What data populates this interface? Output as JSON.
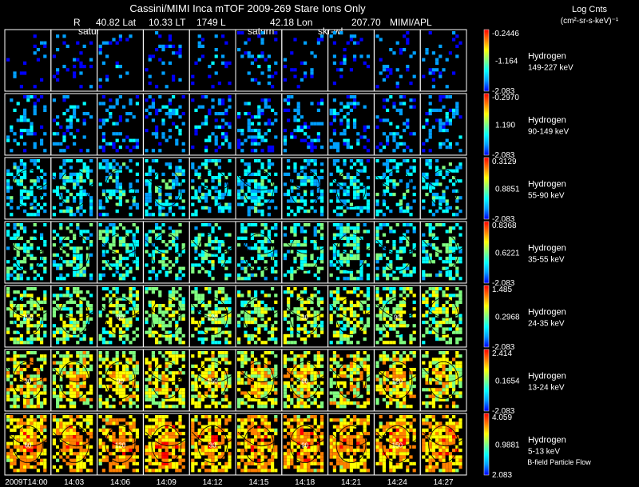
{
  "header": {
    "title": "Cassini/MIMI Inca mTOF  2009-269   Stare   Ions Only",
    "row2": [
      "R",
      "40.82 Lat",
      "10.33 LT",
      "1749 L",
      "42.18 Lon",
      "207.70",
      "MIMI/APL"
    ],
    "overlay_labels": [
      "satur",
      "saturn",
      "skr-wl"
    ]
  },
  "legend_title": {
    "line1": "Log Cnts",
    "line2": "(cm²-sr-s-keV)⁻¹"
  },
  "footer_note": "B-field Particle Flow",
  "chart_data": {
    "type": "heatmap",
    "description": "Energetic neutral atom image grid: 7 energy channels x 10 time frames, colorbar in log counts",
    "time_ticks": [
      "2009T14:00",
      "14:03",
      "14:06",
      "14:09",
      "14:12",
      "14:15",
      "14:18",
      "14:21",
      "14:24",
      "14:27"
    ],
    "colormap": [
      "#0000ff",
      "#00a0ff",
      "#00ffff",
      "#80ff80",
      "#ffff00",
      "#ff8000",
      "#ff0000"
    ],
    "channels": [
      {
        "species": "Hydrogen",
        "energy": "149-227 keV",
        "cmax": "-0.2446",
        "cmid": "-1.164",
        "cmin": "-2.083",
        "fill": 0.15,
        "level": 0.12
      },
      {
        "species": "Hydrogen",
        "energy": "90-149 keV",
        "cmax": "-0.2970",
        "cmid": "1.190",
        "cmin": "-2.083",
        "fill": 0.32,
        "level": 0.18
      },
      {
        "species": "Hydrogen",
        "energy": "55-90 keV",
        "cmax": "0.3129",
        "cmid": "0.8851",
        "cmin": "-2.083",
        "fill": 0.5,
        "level": 0.3
      },
      {
        "species": "Hydrogen",
        "energy": "35-55 keV",
        "cmax": "0.8368",
        "cmid": "0.6221",
        "cmin": "-2.083",
        "fill": 0.52,
        "level": 0.38
      },
      {
        "species": "Hydrogen",
        "energy": "24-35 keV",
        "cmax": "1.485",
        "cmid": "0.2968",
        "cmin": "-2.083",
        "fill": 0.62,
        "level": 0.5
      },
      {
        "species": "Hydrogen",
        "energy": "13-24 keV",
        "cmax": "2.414",
        "cmid": "0.1654",
        "cmin": "-2.083",
        "fill": 0.75,
        "level": 0.6
      },
      {
        "species": "Hydrogen",
        "energy": "5-13 keV",
        "cmax": "4.059",
        "cmid": "0.9881",
        "cmin": "2.083",
        "fill": 0.82,
        "level": 0.7
      }
    ],
    "contour_labels": [
      "30",
      "60",
      "90",
      "120",
      "150"
    ]
  }
}
